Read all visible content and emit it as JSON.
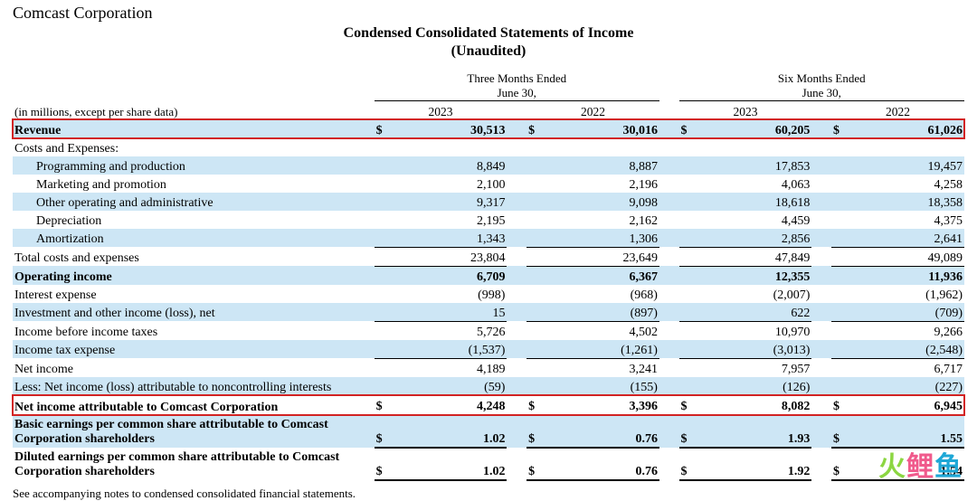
{
  "header": {
    "crop_text": "Comcast Corporation",
    "title_line1": "Condensed Consolidated Statements of Income",
    "title_line2": "(Unaudited)"
  },
  "periods": {
    "left": "Three Months Ended\nJune 30,",
    "right": "Six Months Ended\nJune 30,",
    "years": [
      "2023",
      "2022",
      "2023",
      "2022"
    ]
  },
  "caption": "(in millions, except per share data)",
  "rows": [
    {
      "label": "Revenue",
      "vals": [
        "30,513",
        "30,016",
        "60,205",
        "61,026"
      ],
      "bold": true,
      "stripe": true,
      "currency": true,
      "red": true,
      "topBorder": true
    },
    {
      "label": "Costs and Expenses:",
      "vals": [
        "",
        "",
        "",
        ""
      ]
    },
    {
      "label": "Programming and production",
      "vals": [
        "8,849",
        "8,887",
        "17,853",
        "19,457"
      ],
      "indent": 1,
      "stripe": true
    },
    {
      "label": "Marketing and promotion",
      "vals": [
        "2,100",
        "2,196",
        "4,063",
        "4,258"
      ],
      "indent": 1
    },
    {
      "label": "Other operating and administrative",
      "vals": [
        "9,317",
        "9,098",
        "18,618",
        "18,358"
      ],
      "indent": 1,
      "stripe": true
    },
    {
      "label": "Depreciation",
      "vals": [
        "2,195",
        "2,162",
        "4,459",
        "4,375"
      ],
      "indent": 1
    },
    {
      "label": "Amortization",
      "vals": [
        "1,343",
        "1,306",
        "2,856",
        "2,641"
      ],
      "indent": 1,
      "stripe": true,
      "bottomBorderN": true
    },
    {
      "label": "Total costs and expenses",
      "vals": [
        "23,804",
        "23,649",
        "47,849",
        "49,089"
      ],
      "bottomBorderN": true
    },
    {
      "label": "Operating income",
      "vals": [
        "6,709",
        "6,367",
        "12,355",
        "11,936"
      ],
      "bold": true,
      "stripe": true
    },
    {
      "label": "Interest expense",
      "vals": [
        "(998)",
        "(968)",
        "(2,007)",
        "(1,962)"
      ]
    },
    {
      "label": "Investment and other income (loss), net",
      "vals": [
        "15",
        "(897)",
        "622",
        "(709)"
      ],
      "stripe": true,
      "bottomBorderN": true
    },
    {
      "label": "Income before income taxes",
      "vals": [
        "5,726",
        "4,502",
        "10,970",
        "9,266"
      ]
    },
    {
      "label": "Income tax expense",
      "vals": [
        "(1,537)",
        "(1,261)",
        "(3,013)",
        "(2,548)"
      ],
      "stripe": true,
      "bottomBorderN": true
    },
    {
      "label": "Net income",
      "vals": [
        "4,189",
        "3,241",
        "7,957",
        "6,717"
      ]
    },
    {
      "label": "Less: Net income (loss) attributable to noncontrolling interests",
      "vals": [
        "(59)",
        "(155)",
        "(126)",
        "(227)"
      ],
      "stripe": true,
      "bottomBorderN": true
    },
    {
      "label": "Net income attributable to Comcast Corporation",
      "vals": [
        "4,248",
        "3,396",
        "8,082",
        "6,945"
      ],
      "bold": true,
      "currency": true,
      "red": true,
      "doubleBorderN": true
    },
    {
      "label": "Basic earnings per common share attributable to Comcast Corporation shareholders",
      "vals": [
        "1.02",
        "0.76",
        "1.93",
        "1.55"
      ],
      "bold": true,
      "stripe": true,
      "currency": true,
      "tall": true,
      "doubleBorderN": true
    },
    {
      "label": "Diluted earnings per common share attributable to Comcast Corporation shareholders",
      "vals": [
        "1.02",
        "0.76",
        "1.92",
        "1.54"
      ],
      "bold": true,
      "currency": true,
      "tall": true,
      "doubleBorderN": true
    }
  ],
  "footnote": "See accompanying notes to condensed consolidated financial statements.",
  "colors": {
    "stripe": "#cde6f5",
    "highlight": "#d22323",
    "text": "#000000",
    "bg": "#ffffff"
  }
}
